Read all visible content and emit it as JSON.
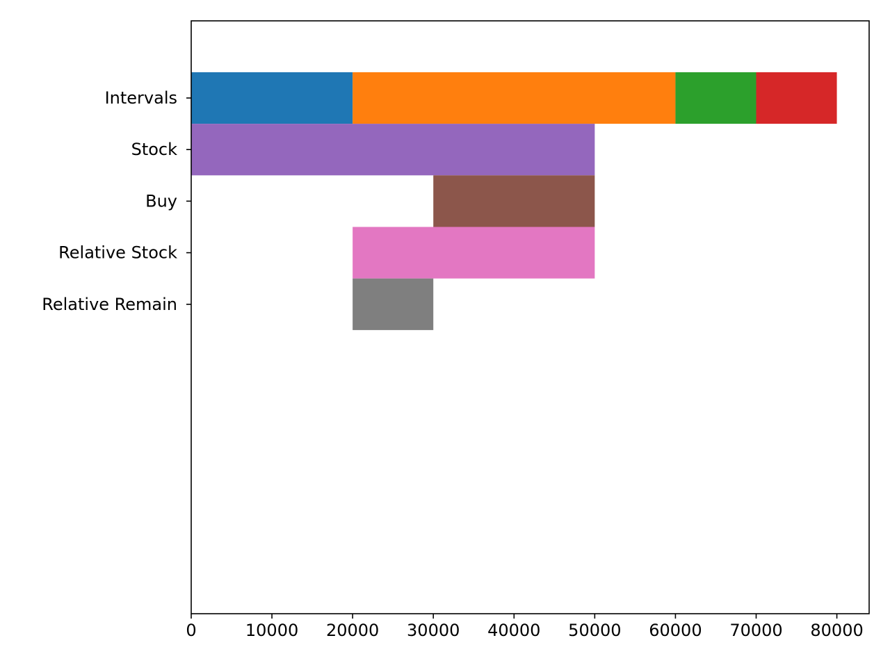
{
  "chart_data": {
    "type": "bar",
    "orientation": "horizontal",
    "title": "",
    "xlabel": "",
    "ylabel": "",
    "grid": false,
    "xlim": [
      0,
      84000
    ],
    "xticks": [
      0,
      10000,
      20000,
      30000,
      40000,
      50000,
      60000,
      70000,
      80000
    ],
    "categories": [
      "Intervals",
      "Stock",
      "Buy",
      "Relative Stock",
      "Relative Remain"
    ],
    "segments": [
      {
        "category": "Intervals",
        "start": 0,
        "end": 20000,
        "color": "#1f77b4"
      },
      {
        "category": "Intervals",
        "start": 20000,
        "end": 60000,
        "color": "#ff7f0e"
      },
      {
        "category": "Intervals",
        "start": 60000,
        "end": 70000,
        "color": "#2ca02c"
      },
      {
        "category": "Intervals",
        "start": 70000,
        "end": 80000,
        "color": "#d62728"
      },
      {
        "category": "Stock",
        "start": 0,
        "end": 50000,
        "color": "#9467bd"
      },
      {
        "category": "Buy",
        "start": 30000,
        "end": 50000,
        "color": "#8c564b"
      },
      {
        "category": "Relative Stock",
        "start": 20000,
        "end": 50000,
        "color": "#e377c2"
      },
      {
        "category": "Relative Remain",
        "start": 20000,
        "end": 30000,
        "color": "#7f7f7f"
      }
    ]
  }
}
